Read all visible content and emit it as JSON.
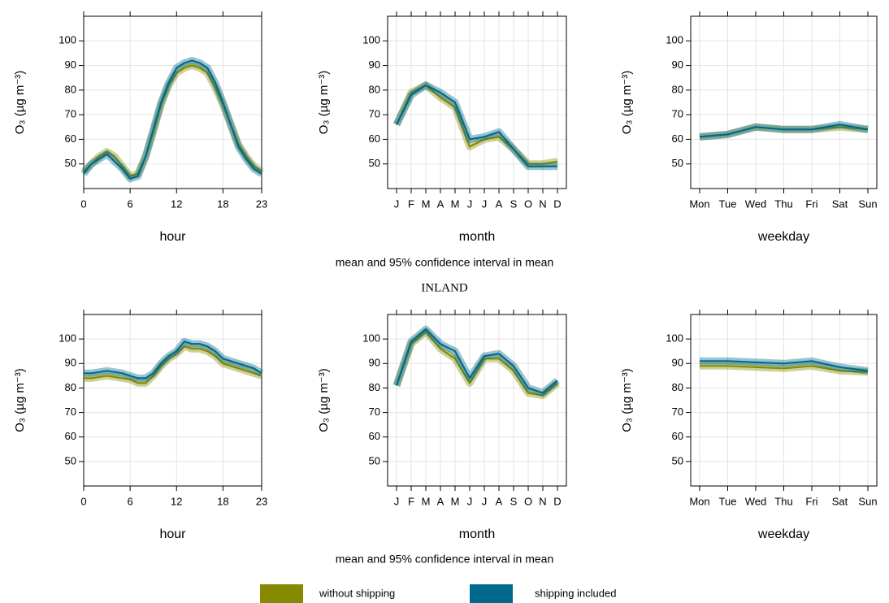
{
  "chart_data": [
    {
      "type": "line",
      "xlabel": "hour",
      "ylabel": "O₃ (µg m⁻³)",
      "x": [
        0,
        1,
        2,
        3,
        4,
        5,
        6,
        7,
        8,
        9,
        10,
        11,
        12,
        13,
        14,
        15,
        16,
        17,
        18,
        19,
        20,
        21,
        22,
        23
      ],
      "xlim": [
        0,
        23
      ],
      "xticks": [
        0,
        6,
        12,
        18,
        23
      ],
      "ylim": [
        40,
        110
      ],
      "yticks": [
        50,
        60,
        70,
        80,
        90,
        100
      ],
      "grid": true,
      "series": [
        {
          "name": "without shipping",
          "color": "#858a00",
          "values": [
            47,
            50,
            53,
            55,
            53,
            49,
            45,
            46,
            53,
            63,
            74,
            82,
            87,
            89,
            90,
            89,
            87,
            81,
            74,
            66,
            58,
            53,
            49,
            47
          ]
        },
        {
          "name": "shipping included",
          "color": "#006a8e",
          "values": [
            46,
            50,
            52,
            54,
            51,
            48,
            44,
            45,
            53,
            64,
            75,
            83,
            89,
            91,
            92,
            91,
            89,
            83,
            75,
            66,
            57,
            52,
            48,
            46
          ]
        }
      ]
    },
    {
      "type": "line",
      "xlabel": "month",
      "ylabel": "O₃ (µg m⁻³)",
      "categories": [
        "J",
        "F",
        "M",
        "A",
        "M",
        "J",
        "J",
        "A",
        "S",
        "O",
        "N",
        "D"
      ],
      "ylim": [
        40,
        110
      ],
      "yticks": [
        50,
        60,
        70,
        80,
        90,
        100
      ],
      "grid": true,
      "series": [
        {
          "name": "without shipping",
          "color": "#858a00",
          "values": [
            66,
            79,
            82,
            77,
            73,
            57,
            60,
            61,
            56,
            50,
            50,
            51
          ]
        },
        {
          "name": "shipping included",
          "color": "#006a8e",
          "values": [
            66,
            78,
            82,
            79,
            75,
            60,
            61,
            63,
            56,
            49,
            49,
            49
          ]
        }
      ]
    },
    {
      "type": "line",
      "xlabel": "weekday",
      "ylabel": "O₃ (µg m⁻³)",
      "categories": [
        "Mon",
        "Tue",
        "Wed",
        "Thu",
        "Fri",
        "Sat",
        "Sun"
      ],
      "ylim": [
        40,
        110
      ],
      "yticks": [
        50,
        60,
        70,
        80,
        90,
        100
      ],
      "grid": true,
      "series": [
        {
          "name": "without shipping",
          "color": "#858a00",
          "values": [
            61,
            62,
            65,
            64,
            64,
            65,
            64
          ]
        },
        {
          "name": "shipping included",
          "color": "#006a8e",
          "values": [
            61,
            62,
            65,
            64,
            64,
            66,
            64
          ]
        }
      ]
    },
    {
      "type": "line",
      "xlabel": "hour",
      "ylabel": "O₃ (µg m⁻³)",
      "x": [
        0,
        1,
        2,
        3,
        4,
        5,
        6,
        7,
        8,
        9,
        10,
        11,
        12,
        13,
        14,
        15,
        16,
        17,
        18,
        19,
        20,
        21,
        22,
        23
      ],
      "xlim": [
        0,
        23
      ],
      "xticks": [
        0,
        6,
        12,
        18,
        23
      ],
      "ylim": [
        40,
        110
      ],
      "yticks": [
        50,
        60,
        70,
        80,
        90,
        100
      ],
      "grid": true,
      "series": [
        {
          "name": "without shipping",
          "color": "#858a00",
          "values": [
            84,
            84,
            84.5,
            85,
            84.5,
            84,
            83.5,
            82,
            82,
            85,
            89,
            92,
            94,
            97,
            96,
            96,
            95,
            93,
            90,
            89,
            88,
            87,
            86,
            85
          ]
        },
        {
          "name": "shipping included",
          "color": "#006a8e",
          "values": [
            86,
            86,
            86.5,
            87,
            86.5,
            86,
            85,
            84,
            84,
            86,
            90,
            93,
            95,
            99,
            98,
            98,
            97,
            95,
            92,
            91,
            90,
            89,
            88,
            86
          ]
        }
      ]
    },
    {
      "type": "line",
      "xlabel": "month",
      "ylabel": "O₃ (µg m⁻³)",
      "categories": [
        "J",
        "F",
        "M",
        "A",
        "M",
        "J",
        "J",
        "A",
        "S",
        "O",
        "N",
        "D"
      ],
      "ylim": [
        40,
        110
      ],
      "yticks": [
        50,
        60,
        70,
        80,
        90,
        100
      ],
      "grid": true,
      "series": [
        {
          "name": "without shipping",
          "color": "#858a00",
          "values": [
            81,
            98,
            103,
            96,
            92,
            82,
            92,
            92,
            87,
            78,
            77,
            82
          ]
        },
        {
          "name": "shipping included",
          "color": "#006a8e",
          "values": [
            81,
            99,
            104,
            98,
            95,
            84,
            93,
            94,
            89,
            80,
            78,
            83
          ]
        }
      ]
    },
    {
      "type": "line",
      "xlabel": "weekday",
      "ylabel": "O₃ (µg m⁻³)",
      "categories": [
        "Mon",
        "Tue",
        "Wed",
        "Thu",
        "Fri",
        "Sat",
        "Sun"
      ],
      "ylim": [
        40,
        110
      ],
      "yticks": [
        50,
        60,
        70,
        80,
        90,
        100
      ],
      "grid": true,
      "series": [
        {
          "name": "without shipping",
          "color": "#858a00",
          "values": [
            89,
            89,
            88.5,
            88,
            89,
            87,
            86.5
          ]
        },
        {
          "name": "shipping included",
          "color": "#006a8e",
          "values": [
            91,
            91,
            90.5,
            90,
            91,
            88.5,
            87
          ]
        }
      ]
    }
  ],
  "captions": [
    "mean and 95% confidence interval in mean",
    "mean and 95% confidence interval in mean"
  ],
  "section_title": "INLAND"
}
